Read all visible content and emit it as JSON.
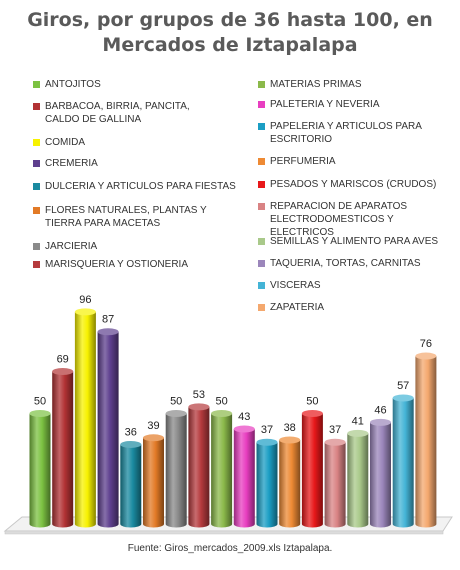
{
  "title_line1": "Giros, por grupos de 36 hasta 100, en",
  "title_line2": "Mercados de Iztapalapa",
  "source": "Fuente: Giros_mercados_2009.xls Iztapalapa.",
  "chart_data": {
    "type": "bar",
    "title": "Giros, por grupos de 36 hasta 100, en Mercados de Iztapalapa",
    "categories": [
      "ANTOJITOS",
      "BARBACOA, BIRRIA, PANCITA, CALDO DE GALLINA",
      "COMIDA",
      "CREMERIA",
      "DULCERIA Y ARTICULOS PARA FIESTAS",
      "FLORES NATURALES, PLANTAS Y TIERRA PARA MACETAS",
      "JARCIERIA",
      "MARISQUERIA Y OSTIONERIA",
      "MATERIAS PRIMAS",
      "PALETERIA Y NEVERIA",
      "PAPELERIA Y ARTICULOS PARA ESCRITORIO",
      "PERFUMERIA",
      "PESADOS Y MARISCOS (CRUDOS)",
      "REPARACION DE APARATOS ELECTRODOMESTICOS Y ELECTRICOS",
      "SEMILLAS Y ALIMENTO PARA AVES",
      "TAQUERIA, TORTAS, CARNITAS",
      "VISCERAS",
      "ZAPATERIA"
    ],
    "bar_order": [
      0,
      1,
      2,
      3,
      4,
      5,
      6,
      7,
      8,
      9,
      10,
      11,
      12,
      13,
      14,
      15,
      16,
      17
    ],
    "values": [
      50,
      69,
      96,
      87,
      36,
      39,
      50,
      53,
      50,
      43,
      37,
      38,
      50,
      37,
      41,
      46,
      57,
      76
    ],
    "colors": [
      "#7cc242",
      "#b23234",
      "#f7f200",
      "#5e3f8e",
      "#1a8aa0",
      "#e27a26",
      "#8a8a8a",
      "#b53a3d",
      "#8bb94a",
      "#e83ec0",
      "#1b9ec4",
      "#ee8a34",
      "#e8181a",
      "#d98384",
      "#a9c98a",
      "#9b86bb",
      "#44b4d6",
      "#f4a86e"
    ],
    "legend_labels": [
      "ANTOJITOS",
      "BARBACOA, BIRRIA, PANCITA,\nCALDO DE GALLINA",
      "COMIDA",
      "CREMERIA",
      "DULCERIA Y ARTICULOS PARA FIESTAS",
      "FLORES NATURALES, PLANTAS Y\nTIERRA PARA MACETAS",
      "JARCIERIA",
      "MARISQUERIA Y OSTIONERIA",
      "MATERIAS PRIMAS",
      "PALETERIA Y NEVERIA",
      "PAPELERIA Y ARTICULOS PARA\nESCRITORIO",
      "PERFUMERIA",
      "PESADOS Y MARISCOS (CRUDOS)",
      "REPARACION DE APARATOS\nELECTRODOMESTICOS Y ELECTRICOS",
      "SEMILLAS Y ALIMENTO PARA AVES",
      "TAQUERIA, TORTAS, CARNITAS",
      "VISCERAS",
      "ZAPATERIA"
    ],
    "legend_placement": "top, two columns",
    "ylim": [
      0,
      100
    ],
    "grid": false,
    "xlabel": "",
    "ylabel": ""
  }
}
